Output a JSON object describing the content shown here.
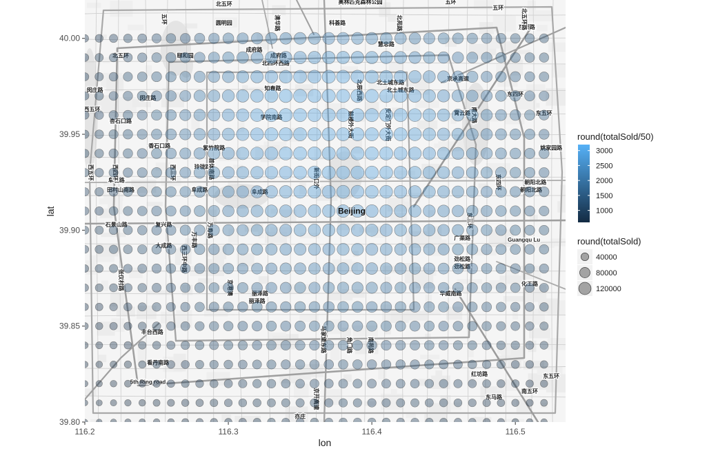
{
  "chart_data": {
    "type": "scatter",
    "xlabel": "lon",
    "ylabel": "lat",
    "xlim": [
      116.2,
      116.535
    ],
    "ylim": [
      39.8,
      40.02
    ],
    "x_ticks": [
      {
        "value": 116.2,
        "label": "116.2"
      },
      {
        "value": 116.3,
        "label": "116.3"
      },
      {
        "value": 116.4,
        "label": "116.4"
      },
      {
        "value": 116.5,
        "label": "116.5"
      }
    ],
    "y_ticks": [
      {
        "value": 39.8,
        "label": "39.80"
      },
      {
        "value": 39.85,
        "label": "39.85"
      },
      {
        "value": 39.9,
        "label": "39.90"
      },
      {
        "value": 39.95,
        "label": "39.95"
      },
      {
        "value": 40.0,
        "label": "40.00"
      }
    ],
    "grid": {
      "lon_start": 116.2,
      "lon_step": 0.01,
      "lon_count": 33,
      "lat_start": 39.8,
      "lat_step": 0.01,
      "lat_count": 21
    },
    "center": {
      "lon": 116.385,
      "lat": 39.935
    },
    "color_variable": "round(totalSold/50)",
    "size_variable": "round(totalSold)",
    "color_legend": {
      "title": "round(totalSold/50)",
      "range": [
        600,
        3200
      ],
      "ticks": [
        {
          "value": 1000,
          "label": "1000"
        },
        {
          "value": 1500,
          "label": "1500"
        },
        {
          "value": 2000,
          "label": "2000"
        },
        {
          "value": 2500,
          "label": "2500"
        },
        {
          "value": 3000,
          "label": "3000"
        }
      ],
      "low_color": "#132b43",
      "high_color": "#56b1f7"
    },
    "size_legend": {
      "title": "round(totalSold)",
      "entries": [
        {
          "value": 40000,
          "label": "40000"
        },
        {
          "value": 80000,
          "label": "80000"
        },
        {
          "value": 120000,
          "label": "120000"
        }
      ]
    },
    "legend_position": "right"
  },
  "map": {
    "city_label": "Beijing",
    "labels": [
      {
        "text": "北五环",
        "lon": 116.297,
        "lat": 40.017
      },
      {
        "text": "奥林匹克森林公园",
        "lon": 116.392,
        "lat": 40.018
      },
      {
        "text": "五环",
        "lon": 116.455,
        "lat": 40.018
      },
      {
        "text": "五环",
        "lon": 116.488,
        "lat": 40.015
      },
      {
        "text": "圆明园",
        "lon": 116.297,
        "lat": 40.007
      },
      {
        "text": "科荟路",
        "lon": 116.376,
        "lat": 40.007
      },
      {
        "text": "慧忠路",
        "lon": 116.41,
        "lat": 39.996
      },
      {
        "text": "成府路",
        "lon": 116.318,
        "lat": 39.993
      },
      {
        "text": "成府路",
        "lon": 116.335,
        "lat": 39.99
      },
      {
        "text": "颐和园",
        "lon": 116.27,
        "lat": 39.99
      },
      {
        "text": "北五环",
        "lon": 116.225,
        "lat": 39.99
      },
      {
        "text": "北四环西路",
        "lon": 116.333,
        "lat": 39.986
      },
      {
        "text": "北土城东路",
        "lon": 116.413,
        "lat": 39.976
      },
      {
        "text": "北土城东路",
        "lon": 116.42,
        "lat": 39.972
      },
      {
        "text": "知春路",
        "lon": 116.331,
        "lat": 39.973
      },
      {
        "text": "闵庄路",
        "lon": 116.207,
        "lat": 39.972
      },
      {
        "text": "闵庄路",
        "lon": 116.244,
        "lat": 39.968
      },
      {
        "text": "西五环",
        "lon": 116.205,
        "lat": 39.962
      },
      {
        "text": "学院南路",
        "lon": 116.33,
        "lat": 39.958
      },
      {
        "text": "杏石口路",
        "lon": 116.225,
        "lat": 39.956
      },
      {
        "text": "石景山路",
        "lon": 116.222,
        "lat": 39.902
      },
      {
        "text": "复兴路",
        "lon": 116.255,
        "lat": 39.902
      },
      {
        "text": "阜石路",
        "lon": 116.222,
        "lat": 39.925
      },
      {
        "text": "田村山南路",
        "lon": 116.225,
        "lat": 39.92
      },
      {
        "text": "阜成路",
        "lon": 116.28,
        "lat": 39.92
      },
      {
        "text": "阜成路",
        "lon": 116.322,
        "lat": 39.919
      },
      {
        "text": "玲珑路",
        "lon": 116.282,
        "lat": 39.932
      },
      {
        "text": "紫竹院路",
        "lon": 116.29,
        "lat": 39.942
      },
      {
        "text": "香石口路",
        "lon": 116.252,
        "lat": 39.943
      },
      {
        "text": "大成路",
        "lon": 116.255,
        "lat": 39.891
      },
      {
        "text": "丽泽路",
        "lon": 116.322,
        "lat": 39.866
      },
      {
        "text": "丽泽路",
        "lon": 116.32,
        "lat": 39.862
      },
      {
        "text": "丰台西路",
        "lon": 116.247,
        "lat": 39.846
      },
      {
        "text": "看丹南路",
        "lon": 116.251,
        "lat": 39.83
      },
      {
        "text": "5th Ring road",
        "lon": 116.244,
        "lat": 39.82
      },
      {
        "text": "广渠路",
        "lon": 116.463,
        "lat": 39.895
      },
      {
        "text": "Guangqu Lu",
        "lon": 116.506,
        "lat": 39.894
      },
      {
        "text": "劲松路",
        "lon": 116.463,
        "lat": 39.884
      },
      {
        "text": "劲松路",
        "lon": 116.463,
        "lat": 39.88
      },
      {
        "text": "华威南路",
        "lon": 116.455,
        "lat": 39.866
      },
      {
        "text": "化工路",
        "lon": 116.51,
        "lat": 39.871
      },
      {
        "text": "朝阳北路",
        "lon": 116.514,
        "lat": 39.924
      },
      {
        "text": "朝阳北路",
        "lon": 116.511,
        "lat": 39.92
      },
      {
        "text": "姚家园路",
        "lon": 116.525,
        "lat": 39.942
      },
      {
        "text": "东五环",
        "lon": 116.52,
        "lat": 39.96
      },
      {
        "text": "京顺路",
        "lon": 116.508,
        "lat": 40.005
      },
      {
        "text": "京承高速",
        "lon": 116.46,
        "lat": 39.978
      },
      {
        "text": "霄云路",
        "lon": 116.463,
        "lat": 39.96
      },
      {
        "text": "东四环",
        "lon": 116.5,
        "lat": 39.97
      },
      {
        "text": "红坊路",
        "lon": 116.475,
        "lat": 39.824
      },
      {
        "text": "东马路",
        "lon": 116.485,
        "lat": 39.812
      },
      {
        "text": "南五环",
        "lon": 116.51,
        "lat": 39.815
      },
      {
        "text": "东五环",
        "lon": 116.525,
        "lat": 39.823
      },
      {
        "text": "亦庄",
        "lon": 116.35,
        "lat": 39.802
      }
    ],
    "vertical_labels": [
      {
        "text": "五环",
        "lon": 116.254,
        "lat": 40.01
      },
      {
        "text": "清华路",
        "lon": 116.333,
        "lat": 40.008
      },
      {
        "text": "北辰西路",
        "lon": 116.39,
        "lat": 39.973
      },
      {
        "text": "北苑路",
        "lon": 116.418,
        "lat": 40.008
      },
      {
        "text": "鼓楼外大街",
        "lon": 116.384,
        "lat": 39.955
      },
      {
        "text": "安定门外大街",
        "lon": 116.41,
        "lat": 39.955
      },
      {
        "text": "西三环",
        "lon": 116.26,
        "lat": 39.93
      },
      {
        "text": "首体南路",
        "lon": 116.287,
        "lat": 39.932
      },
      {
        "text": "新街口外",
        "lon": 116.36,
        "lat": 39.927
      },
      {
        "text": "西三环中路",
        "lon": 116.268,
        "lat": 39.885
      },
      {
        "text": "马家堡东路",
        "lon": 116.365,
        "lat": 39.843
      },
      {
        "text": "角门路",
        "lon": 116.383,
        "lat": 39.84
      },
      {
        "text": "南苑路",
        "lon": 116.398,
        "lat": 39.84
      },
      {
        "text": "东三环",
        "lon": 116.467,
        "lat": 39.905
      },
      {
        "text": "东四环",
        "lon": 116.487,
        "lat": 39.925
      },
      {
        "text": "万丰路",
        "lon": 116.275,
        "lat": 39.895
      },
      {
        "text": "张仪村路",
        "lon": 116.224,
        "lat": 39.874
      },
      {
        "text": "西四环",
        "lon": 116.22,
        "lat": 39.93
      },
      {
        "text": "京开高速",
        "lon": 116.36,
        "lat": 39.812
      },
      {
        "text": "京港澳",
        "lon": 116.3,
        "lat": 39.87
      },
      {
        "text": "西五环",
        "lon": 116.203,
        "lat": 39.93
      },
      {
        "text": "万寿路",
        "lon": 116.286,
        "lat": 39.9
      },
      {
        "text": "甫大路",
        "lon": 116.47,
        "lat": 39.96
      },
      {
        "text": "北五环路",
        "lon": 116.505,
        "lat": 40.01
      }
    ]
  }
}
